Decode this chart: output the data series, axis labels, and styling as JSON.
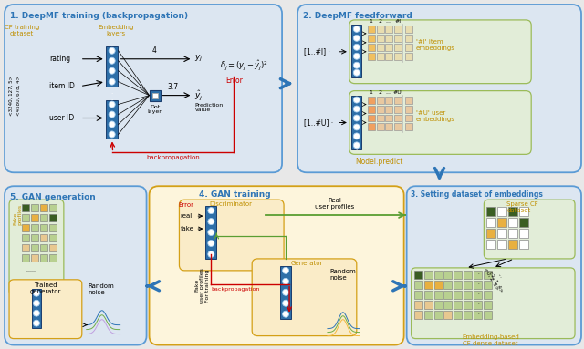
{
  "bg_color": "#e8e8e8",
  "s1_bg": "#dce6f1",
  "s1_border": "#5b9bd5",
  "s2_bg": "#dce6f1",
  "s2_border": "#5b9bd5",
  "s3_bg": "#dce6f1",
  "s3_border": "#5b9bd5",
  "s4_bg": "#fdf5dc",
  "s4_border": "#d4a017",
  "s5_bg": "#dce6f1",
  "s5_border": "#5b9bd5",
  "green_panel": "#e2edd8",
  "green_border": "#9bbb59",
  "yellow_panel": "#faecc8",
  "yellow_border": "#d4a017",
  "blue_dark": "#1a3d6e",
  "blue_mid": "#2e75b6",
  "blue_light": "#5b9bd5",
  "gold": "#bf8f00",
  "red": "#cc0000",
  "green_arr": "#5a9e32",
  "node_blue": "#2e6fa8",
  "s1_title": "1. DeepMF training (backpropagation)",
  "s2_title": "2. DeepMF feedforward",
  "s3_title": "3. Setting dataset of embeddings",
  "s4_title": "4. GAN training",
  "s5_title": "5. GAN generation"
}
